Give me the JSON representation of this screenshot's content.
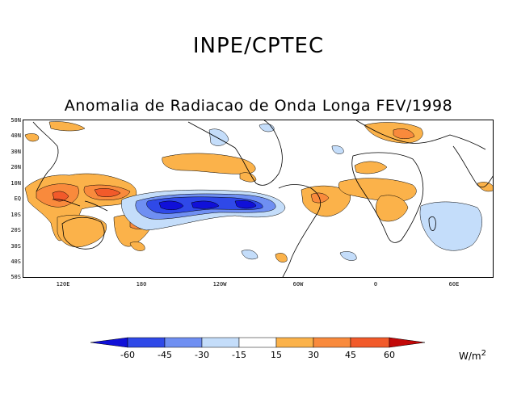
{
  "header": {
    "organization": "INPE/CPTEC"
  },
  "map": {
    "title": "Anomalia de Radiacao de Onda Longa FEV/1998",
    "latitude_labels": [
      "50N",
      "40N",
      "30N",
      "20N",
      "10N",
      "EQ",
      "10S",
      "20S",
      "30S",
      "40S",
      "50S"
    ],
    "longitude_labels": [
      "120E",
      "180",
      "120W",
      "60W",
      "0",
      "60E"
    ]
  },
  "colorbar": {
    "levels": [
      "-60",
      "-45",
      "-30",
      "-15",
      "15",
      "30",
      "45",
      "60"
    ],
    "units_base": "W/m",
    "units_exp": "2",
    "colors": {
      "lt_-60": "#1010d8",
      "-60_-45": "#2f49e8",
      "-45_-30": "#6f8ff2",
      "-30_-15": "#c4ddfa",
      "-15_15": "#ffffff",
      "15_30": "#fbb24a",
      "30_45": "#f98a3c",
      "45_60": "#f25a2a",
      "gt_60": "#c20808"
    }
  }
}
